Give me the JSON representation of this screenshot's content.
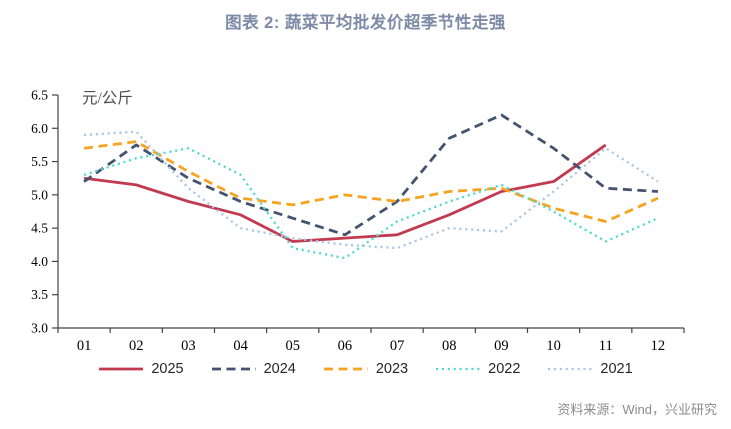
{
  "title": "图表 2: 蔬菜平均批发价超季节性走强",
  "source_note": "资料来源：Wind，兴业研究",
  "chart_data": {
    "type": "line",
    "title": "图表 2: 蔬菜平均批发价超季节性走强",
    "ylabel_unit": "元/公斤",
    "grid": false,
    "legend_position": "bottom",
    "categories": [
      "01",
      "02",
      "03",
      "04",
      "05",
      "06",
      "07",
      "08",
      "09",
      "10",
      "11",
      "12"
    ],
    "y_axis": {
      "min": 3.0,
      "max": 6.5,
      "step": 0.5,
      "tick_labels": [
        "3.0",
        "3.5",
        "4.0",
        "4.5",
        "5.0",
        "5.5",
        "6.0",
        "6.5"
      ]
    },
    "series": [
      {
        "name": "2025",
        "color": "#c23a4f",
        "style": "solid",
        "values": [
          5.25,
          5.15,
          4.9,
          4.7,
          4.3,
          4.35,
          4.4,
          4.7,
          5.05,
          5.2,
          5.75,
          null
        ]
      },
      {
        "name": "2024",
        "color": "#44536f",
        "style": "dashed",
        "values": [
          5.2,
          5.75,
          5.25,
          4.9,
          4.65,
          4.4,
          4.9,
          5.85,
          6.2,
          5.7,
          5.1,
          5.05
        ]
      },
      {
        "name": "2023",
        "color": "#f7a322",
        "style": "dashed",
        "values": [
          5.7,
          5.8,
          5.35,
          4.95,
          4.85,
          5.0,
          4.9,
          5.05,
          5.1,
          4.8,
          4.6,
          4.95
        ]
      },
      {
        "name": "2022",
        "color": "#4fd9ce",
        "style": "dotted",
        "values": [
          5.3,
          5.55,
          5.7,
          5.3,
          4.2,
          4.05,
          4.6,
          4.9,
          5.15,
          4.75,
          4.3,
          4.65
        ]
      },
      {
        "name": "2021",
        "color": "#a9c6e4",
        "style": "dotted",
        "values": [
          5.9,
          5.95,
          5.1,
          4.5,
          4.35,
          4.25,
          4.2,
          4.5,
          4.45,
          5.05,
          5.7,
          5.2
        ]
      }
    ]
  }
}
